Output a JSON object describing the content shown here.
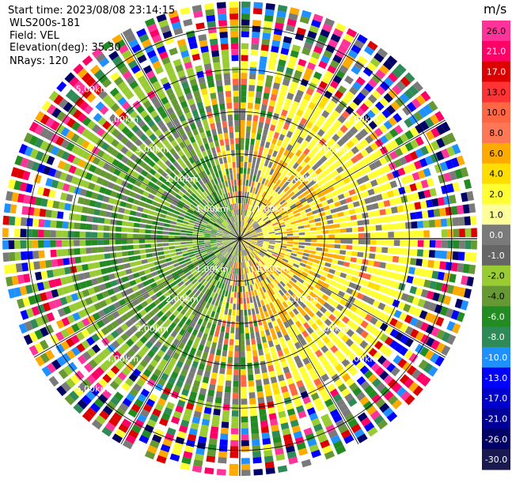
{
  "metadata": {
    "start_time": "Start time: 2023/08/08 23:14:15",
    "station": "WLS200s-181",
    "field": "Field: VEL",
    "elevation": "Elevation(deg): 35.30",
    "nrays": "NRays: 120"
  },
  "chart_data": {
    "type": "heatmap",
    "projection": "polar-ppi",
    "nrays": 120,
    "range_unit": "km",
    "range_rings_km": [
      1.0,
      2.0,
      3.0,
      4.0,
      5.0
    ],
    "max_range_km": 5.6,
    "range_ring_labels": [
      {
        "text": "1.00km",
        "ring": 1,
        "azimuth_deg": 315
      },
      {
        "text": "1.00km",
        "ring": 1,
        "azimuth_deg": 45
      },
      {
        "text": "1.00km",
        "ring": 1,
        "azimuth_deg": 225
      },
      {
        "text": "1.00km",
        "ring": 1,
        "azimuth_deg": 135
      },
      {
        "text": "2.00km",
        "ring": 2,
        "azimuth_deg": 315
      },
      {
        "text": "2.00km",
        "ring": 2,
        "azimuth_deg": 45
      },
      {
        "text": "2.00km",
        "ring": 2,
        "azimuth_deg": 225
      },
      {
        "text": "2.00km",
        "ring": 2,
        "azimuth_deg": 135
      },
      {
        "text": "3.00km",
        "ring": 3,
        "azimuth_deg": 315
      },
      {
        "text": "3.00km",
        "ring": 3,
        "azimuth_deg": 45
      },
      {
        "text": "3.00km",
        "ring": 3,
        "azimuth_deg": 225
      },
      {
        "text": "3.00km",
        "ring": 3,
        "azimuth_deg": 135
      },
      {
        "text": "4.00km",
        "ring": 4,
        "azimuth_deg": 315
      },
      {
        "text": "4.00km",
        "ring": 4,
        "azimuth_deg": 45
      },
      {
        "text": "4.00km",
        "ring": 4,
        "azimuth_deg": 225
      },
      {
        "text": "4.00km",
        "ring": 4,
        "azimuth_deg": 135
      },
      {
        "text": "5.00km",
        "ring": 5,
        "azimuth_deg": 315
      },
      {
        "text": "5.00km",
        "ring": 5,
        "azimuth_deg": 225
      }
    ],
    "spoke_azimuths_deg": [
      0,
      30,
      60,
      90,
      120,
      150,
      180,
      210,
      240,
      270,
      300,
      330
    ],
    "colorbar": {
      "title": "m/s",
      "min": -30.0,
      "max": 26.0,
      "ticks": [
        "26.0",
        "21.0",
        "17.0",
        "13.0",
        "10.0",
        "8.0",
        "6.0",
        "4.0",
        "2.0",
        "1.0",
        "0.0",
        "-1.0",
        "-2.0",
        "-4.0",
        "-6.0",
        "-8.0",
        "-10.0",
        "-13.0",
        "-17.0",
        "-21.0",
        "-26.0",
        "-30.0"
      ],
      "colors": [
        "#ff3399",
        "#ff0066",
        "#dd0000",
        "#ff3333",
        "#ff6644",
        "#ff7755",
        "#ffaa00",
        "#ffdd00",
        "#ffff33",
        "#ffff99",
        "#7a7a7a",
        "#666666",
        "#99cc33",
        "#669933",
        "#228b22",
        "#2e8b57",
        "#1e90ff",
        "#0000ff",
        "#0000cc",
        "#000099",
        "#000066",
        "#1a1a50"
      ]
    },
    "pattern": {
      "description_code": "approaching-left-receding-right",
      "near_field_colors": [
        "#99cc33",
        "#669933",
        "#228b22",
        "#7a7a7a",
        "#ffff33",
        "#ffdd00",
        "#ffaa00",
        "#ff6644"
      ],
      "far_field_noise_colors": [
        "#ff3399",
        "#ff0066",
        "#dd0000",
        "#ffaa00",
        "#ffff33",
        "#99cc33",
        "#669933",
        "#228b22",
        "#2e8b57",
        "#1e90ff",
        "#0000ff",
        "#000066",
        "#7a7a7a",
        "#ffffff"
      ]
    }
  }
}
